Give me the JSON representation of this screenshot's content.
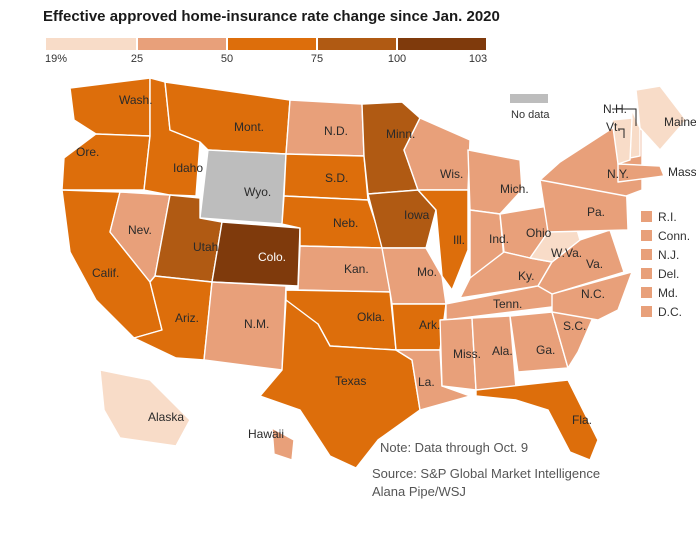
{
  "title": "Effective approved home-insurance rate change since Jan. 2020",
  "legend": {
    "ticks": [
      "19%",
      "25",
      "50",
      "75",
      "100",
      "103"
    ],
    "tick_values": [
      19,
      25,
      50,
      75,
      100,
      103
    ],
    "bins": [
      {
        "from": 19,
        "to": 25,
        "color": "#f8dcc8"
      },
      {
        "from": 25,
        "to": 50,
        "color": "#e8a07a"
      },
      {
        "from": 50,
        "to": 75,
        "color": "#dd6e0b"
      },
      {
        "from": 75,
        "to": 100,
        "color": "#b05a13"
      },
      {
        "from": 100,
        "to": 103,
        "color": "#7f3a0c"
      }
    ],
    "no_data_label": "No data",
    "no_data_color": "#bdbdbd"
  },
  "states": [
    {
      "label": "Wash.",
      "color": "#dd6e0b"
    },
    {
      "label": "Ore.",
      "color": "#dd6e0b"
    },
    {
      "label": "Calif.",
      "color": "#dd6e0b"
    },
    {
      "label": "Nev.",
      "color": "#e8a07a"
    },
    {
      "label": "Idaho",
      "color": "#dd6e0b"
    },
    {
      "label": "Mont.",
      "color": "#dd6e0b"
    },
    {
      "label": "Wyo.",
      "color": "#bdbdbd"
    },
    {
      "label": "Utah",
      "color": "#b05a13"
    },
    {
      "label": "Colo.",
      "color": "#7f3a0c"
    },
    {
      "label": "Ariz.",
      "color": "#dd6e0b"
    },
    {
      "label": "N.M.",
      "color": "#e8a07a"
    },
    {
      "label": "N.D.",
      "color": "#e8a07a"
    },
    {
      "label": "S.D.",
      "color": "#dd6e0b"
    },
    {
      "label": "Neb.",
      "color": "#dd6e0b"
    },
    {
      "label": "Kan.",
      "color": "#e8a07a"
    },
    {
      "label": "Okla.",
      "color": "#dd6e0b"
    },
    {
      "label": "Texas",
      "color": "#dd6e0b"
    },
    {
      "label": "Minn.",
      "color": "#b05a13"
    },
    {
      "label": "Iowa",
      "color": "#b05a13"
    },
    {
      "label": "Mo.",
      "color": "#e8a07a"
    },
    {
      "label": "Ark.",
      "color": "#dd6e0b"
    },
    {
      "label": "La.",
      "color": "#e8a07a"
    },
    {
      "label": "Wis.",
      "color": "#e8a07a"
    },
    {
      "label": "Ill.",
      "color": "#dd6e0b"
    },
    {
      "label": "Mich.",
      "color": "#e8a07a"
    },
    {
      "label": "Ind.",
      "color": "#e8a07a"
    },
    {
      "label": "Ohio",
      "color": "#e8a07a"
    },
    {
      "label": "Ky.",
      "color": "#e8a07a"
    },
    {
      "label": "Tenn.",
      "color": "#e8a07a"
    },
    {
      "label": "Miss.",
      "color": "#e8a07a"
    },
    {
      "label": "Ala.",
      "color": "#e8a07a"
    },
    {
      "label": "Ga.",
      "color": "#e8a07a"
    },
    {
      "label": "Fla.",
      "color": "#dd6e0b"
    },
    {
      "label": "S.C.",
      "color": "#e8a07a"
    },
    {
      "label": "N.C.",
      "color": "#e8a07a"
    },
    {
      "label": "Va.",
      "color": "#e8a07a"
    },
    {
      "label": "W.Va.",
      "color": "#f8dcc8"
    },
    {
      "label": "Pa.",
      "color": "#e8a07a"
    },
    {
      "label": "N.Y.",
      "color": "#e8a07a"
    },
    {
      "label": "Maine",
      "color": "#f8dcc8"
    },
    {
      "label": "N.H.",
      "color": "#f8dcc8"
    },
    {
      "label": "Vt.",
      "color": "#f8dcc8"
    },
    {
      "label": "Mass.",
      "color": "#e8a07a"
    },
    {
      "label": "Alaska",
      "color": "#f8dcc8"
    },
    {
      "label": "Hawaii",
      "color": "#e8a07a"
    }
  ],
  "small_states": [
    {
      "label": "R.I.",
      "color": "#e8a07a"
    },
    {
      "label": "Conn.",
      "color": "#e8a07a"
    },
    {
      "label": "N.J.",
      "color": "#e8a07a"
    },
    {
      "label": "Del.",
      "color": "#e8a07a"
    },
    {
      "label": "Md.",
      "color": "#e8a07a"
    },
    {
      "label": "D.C.",
      "color": "#e8a07a"
    }
  ],
  "note": "Note: Data through Oct. 9",
  "source": "Source: S&P Global Market Intelligence",
  "credit": "Alana Pipe/WSJ"
}
